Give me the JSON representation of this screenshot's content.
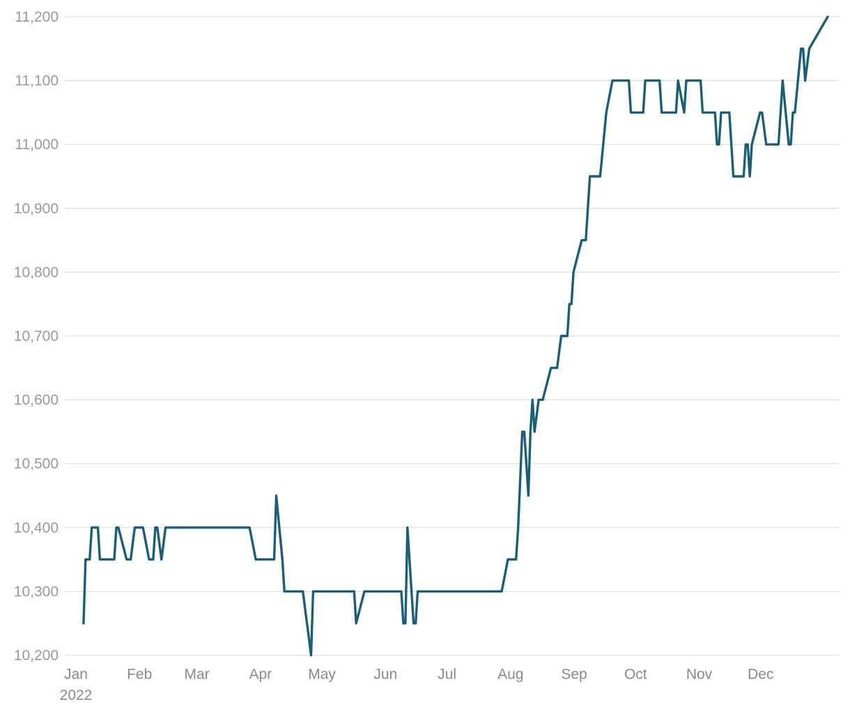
{
  "chart_data": {
    "type": "line",
    "title": "",
    "xlabel": "",
    "ylabel": "",
    "x_tick_labels": [
      "Jan",
      "Feb",
      "Mar",
      "Apr",
      "May",
      "Jun",
      "Jul",
      "Aug",
      "Sep",
      "Oct",
      "Nov",
      "Dec"
    ],
    "x_year_label": "2022",
    "ylim": [
      10200,
      11200
    ],
    "y_ticks": [
      10200,
      10300,
      10400,
      10500,
      10600,
      10700,
      10800,
      10900,
      11000,
      11100,
      11200
    ],
    "y_tick_labels": [
      "10,200",
      "10,300",
      "10,400",
      "10,500",
      "10,600",
      "10,700",
      "10,800",
      "10,900",
      "11,000",
      "11,100",
      "11,200"
    ],
    "grid": true,
    "legend": "none",
    "color": "#1b5e78",
    "series": [
      {
        "x": [
          "2022-01-03",
          "2022-01-04",
          "2022-01-06",
          "2022-01-07",
          "2022-01-10",
          "2022-01-11",
          "2022-01-12",
          "2022-01-13",
          "2022-01-18",
          "2022-01-19",
          "2022-01-20",
          "2022-01-24",
          "2022-01-26",
          "2022-01-28",
          "2022-02-01",
          "2022-02-04",
          "2022-02-06",
          "2022-02-07",
          "2022-02-08",
          "2022-02-10",
          "2022-02-12",
          "2022-02-13",
          "2022-02-14",
          "2022-02-15",
          "2022-03-01",
          "2022-03-15",
          "2022-03-25",
          "2022-03-28",
          "2022-04-01",
          "2022-04-06",
          "2022-04-07",
          "2022-04-10",
          "2022-04-11",
          "2022-04-20",
          "2022-04-24",
          "2022-04-25",
          "2022-05-01",
          "2022-05-15",
          "2022-05-16",
          "2022-05-20",
          "2022-05-25",
          "2022-06-01",
          "2022-06-07",
          "2022-06-08",
          "2022-06-09",
          "2022-06-10",
          "2022-06-13",
          "2022-06-14",
          "2022-06-15",
          "2022-07-01",
          "2022-07-15",
          "2022-07-23",
          "2022-07-26",
          "2022-07-29",
          "2022-08-02",
          "2022-08-03",
          "2022-08-05",
          "2022-08-06",
          "2022-08-08",
          "2022-08-09",
          "2022-08-10",
          "2022-08-11",
          "2022-08-13",
          "2022-08-15",
          "2022-08-19",
          "2022-08-22",
          "2022-08-24",
          "2022-08-27",
          "2022-08-28",
          "2022-08-29",
          "2022-08-30",
          "2022-09-03",
          "2022-09-04",
          "2022-09-05",
          "2022-09-07",
          "2022-09-12",
          "2022-09-15",
          "2022-09-18",
          "2022-09-26",
          "2022-09-27",
          "2022-10-03",
          "2022-10-04",
          "2022-10-11",
          "2022-10-12",
          "2022-10-19",
          "2022-10-20",
          "2022-10-23",
          "2022-10-24",
          "2022-10-31",
          "2022-11-01",
          "2022-11-07",
          "2022-11-08",
          "2022-11-09",
          "2022-11-10",
          "2022-11-14",
          "2022-11-15",
          "2022-11-16",
          "2022-11-21",
          "2022-11-22",
          "2022-11-23",
          "2022-11-24",
          "2022-11-25",
          "2022-11-29",
          "2022-11-30",
          "2022-12-02",
          "2022-12-06",
          "2022-12-07",
          "2022-12-08",
          "2022-12-10",
          "2022-12-13",
          "2022-12-14",
          "2022-12-15",
          "2022-12-16",
          "2022-12-19",
          "2022-12-20",
          "2022-12-21",
          "2022-12-23",
          "2023-01-01"
        ],
        "y": [
          10250,
          10350,
          10350,
          10400,
          10400,
          10350,
          10350,
          10350,
          10350,
          10400,
          10400,
          10350,
          10350,
          10400,
          10400,
          10350,
          10350,
          10400,
          10400,
          10350,
          10400,
          10400,
          10400,
          10400,
          10400,
          10400,
          10400,
          10350,
          10350,
          10350,
          10450,
          10350,
          10300,
          10300,
          10200,
          10300,
          10300,
          10300,
          10250,
          10300,
          10300,
          10300,
          10300,
          10250,
          10250,
          10400,
          10250,
          10250,
          10300,
          10300,
          10300,
          10300,
          10300,
          10350,
          10350,
          10400,
          10550,
          10550,
          10450,
          10550,
          10600,
          10550,
          10600,
          10600,
          10650,
          10650,
          10700,
          10700,
          10750,
          10750,
          10800,
          10850,
          10850,
          10850,
          10950,
          10950,
          11050,
          11100,
          11100,
          11050,
          11050,
          11100,
          11100,
          11050,
          11050,
          11100,
          11050,
          11100,
          11100,
          11050,
          11050,
          11000,
          11000,
          11050,
          11050,
          11000,
          10950,
          10950,
          11000,
          11000,
          10950,
          11000,
          11050,
          11050,
          11000,
          11000,
          11000,
          11000,
          11100,
          11000,
          11000,
          11050,
          11050,
          11150,
          11150,
          11100,
          11150,
          11200
        ]
      }
    ]
  }
}
